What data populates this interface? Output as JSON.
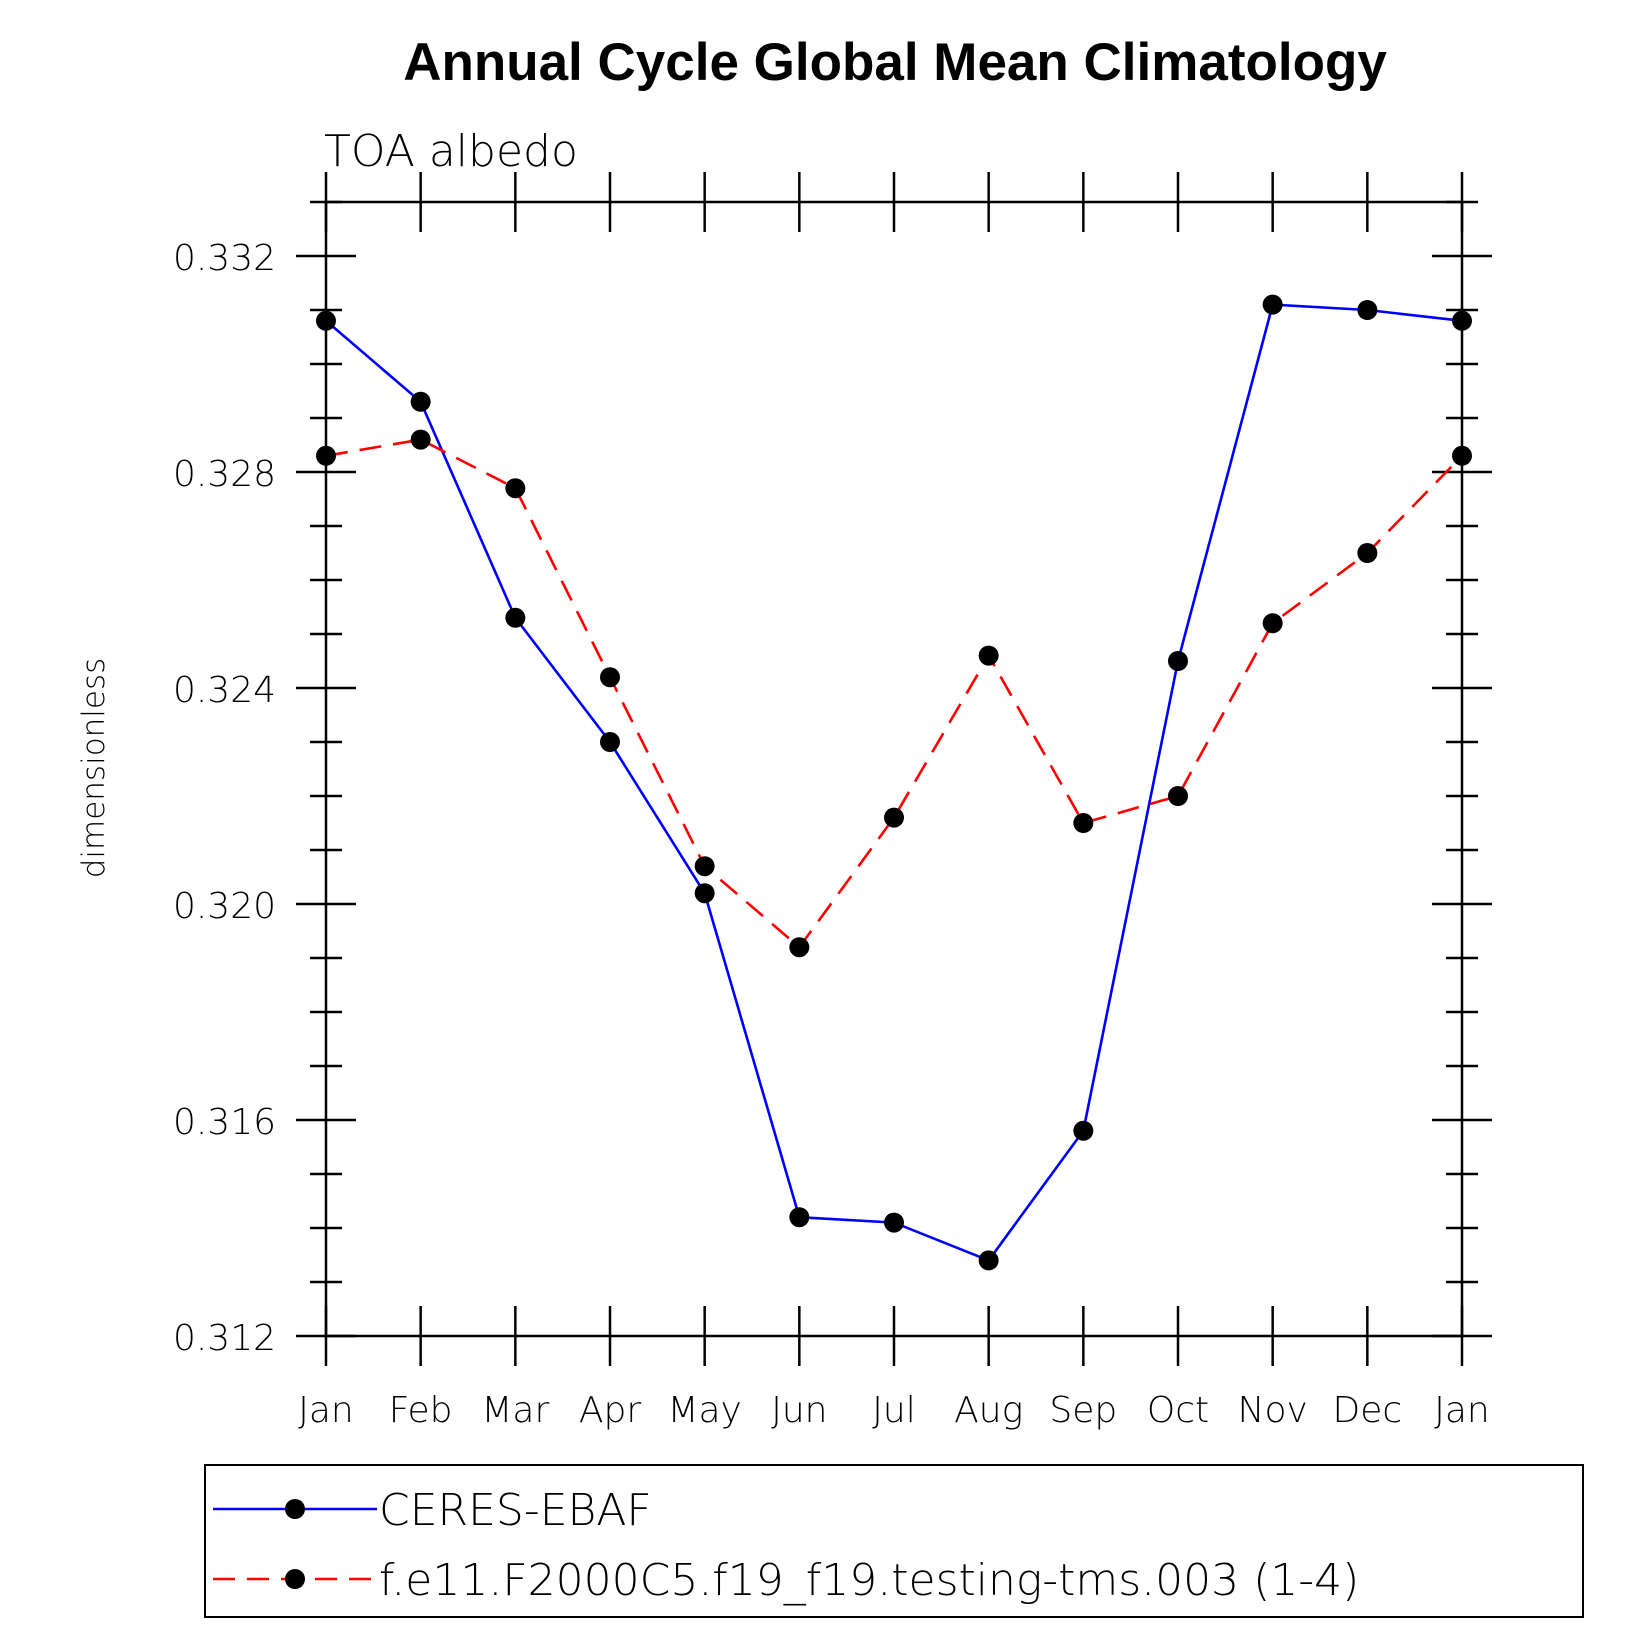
{
  "chart_data": {
    "type": "line",
    "title": "Annual Cycle Global Mean Climatology",
    "subtitle": "TOA albedo",
    "xlabel": "",
    "ylabel": "dimensionless",
    "categories": [
      "Jan",
      "Feb",
      "Mar",
      "Apr",
      "May",
      "Jun",
      "Jul",
      "Aug",
      "Sep",
      "Oct",
      "Nov",
      "Dec",
      "Jan"
    ],
    "ylim": [
      0.312,
      0.333
    ],
    "yticks": [
      0.312,
      0.316,
      0.32,
      0.324,
      0.328,
      0.332
    ],
    "ytick_labels": [
      "0.312",
      "0.316",
      "0.320",
      "0.324",
      "0.328",
      "0.332"
    ],
    "grid": false,
    "legend_placement": "bottom",
    "series": [
      {
        "name": "CERES-EBAF",
        "color": "#0000ff",
        "line_style": "solid",
        "marker": "filled-circle",
        "values": [
          0.3308,
          0.3293,
          0.3253,
          0.323,
          0.3202,
          0.3142,
          0.3141,
          0.3134,
          0.3158,
          0.3245,
          0.3311,
          0.331,
          0.3308
        ]
      },
      {
        "name": "f.e11.F2000C5.f19_f19.testing-tms.003 (1-4)",
        "color": "#ff0000",
        "line_style": "dashed",
        "marker": "filled-circle",
        "values": [
          0.3283,
          0.3286,
          0.3277,
          0.3242,
          0.3207,
          0.3192,
          0.3216,
          0.3246,
          0.3215,
          0.322,
          0.3252,
          0.3265,
          0.3283
        ]
      }
    ]
  }
}
